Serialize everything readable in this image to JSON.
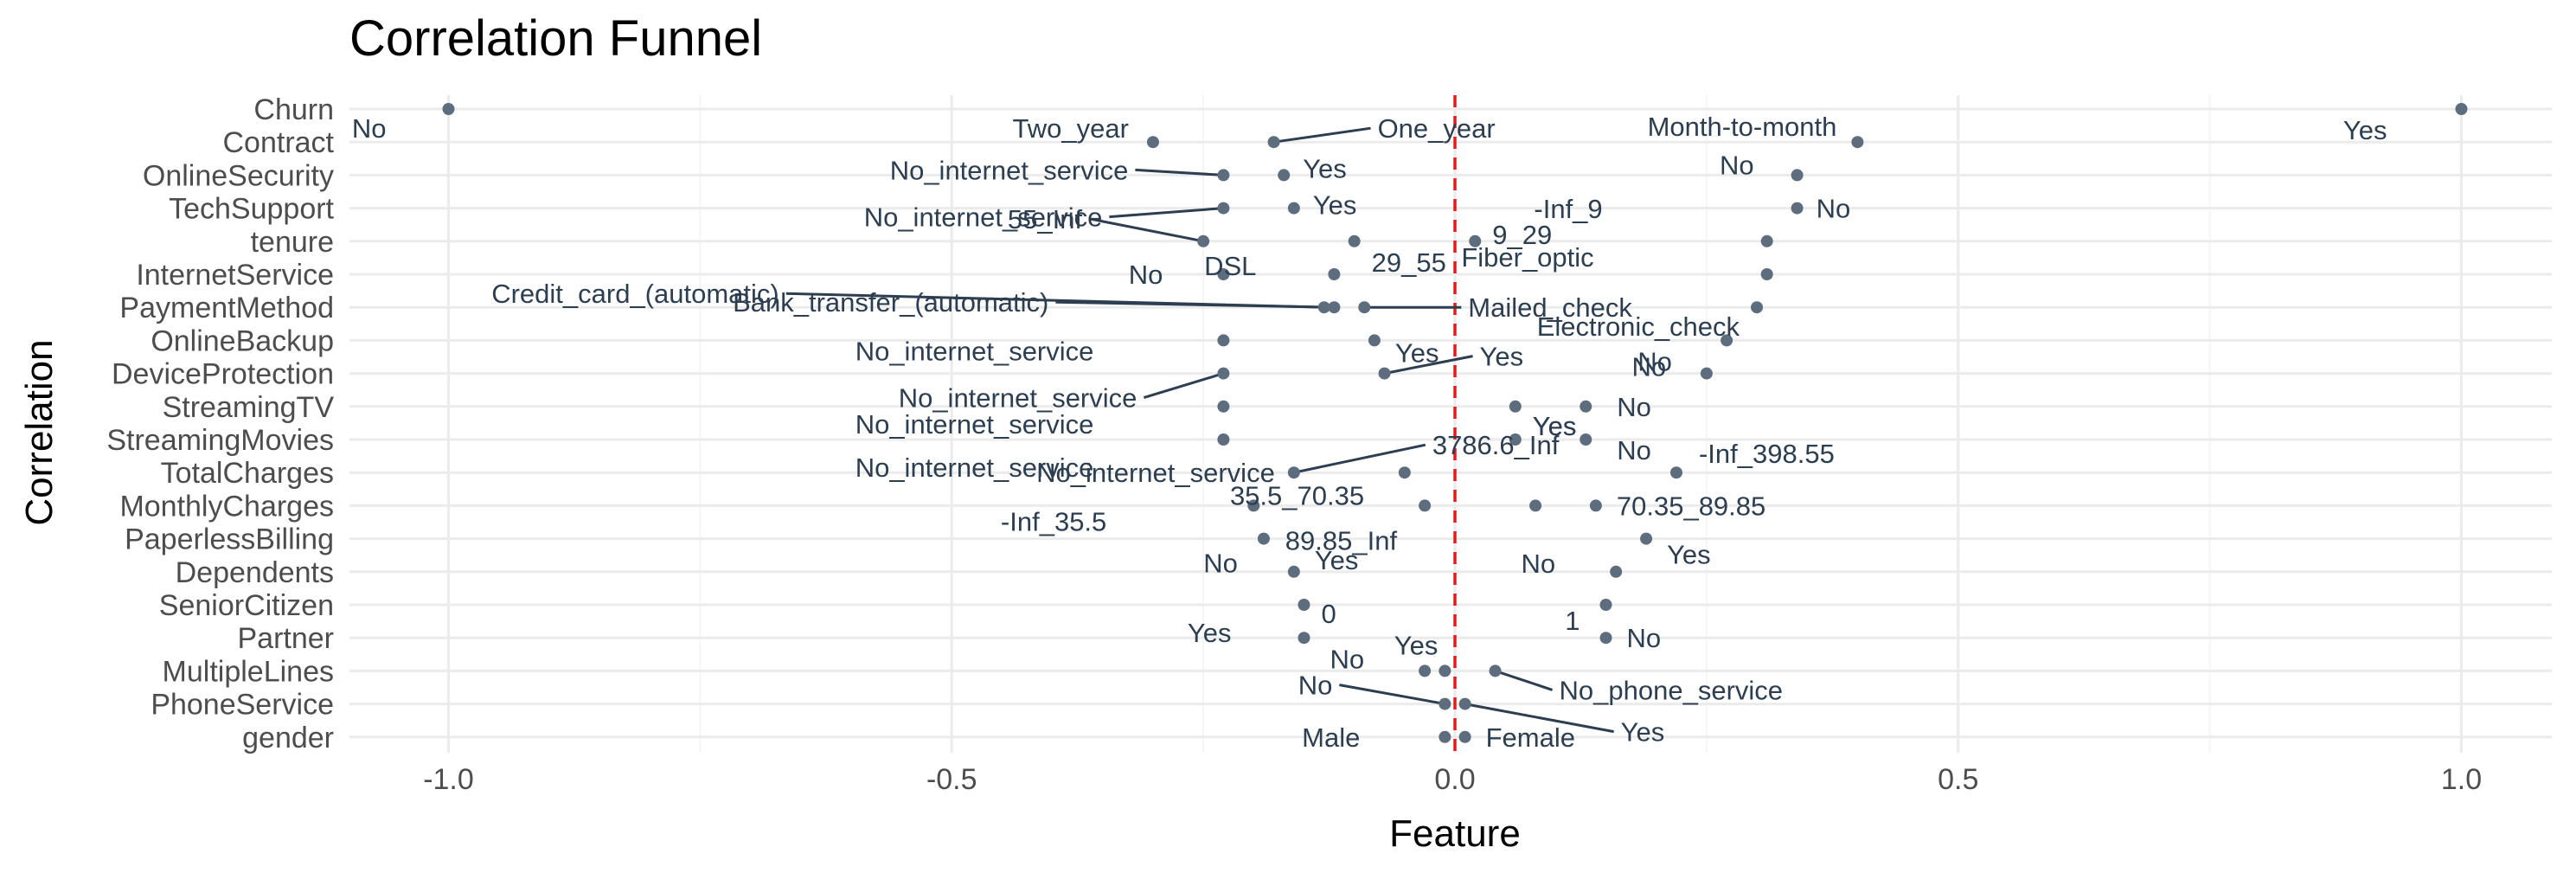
{
  "chart_data": {
    "type": "scatter",
    "title": "Correlation Funnel",
    "xlabel": "Feature",
    "ylabel": "Correlation",
    "xlim": [
      -1.1,
      1.1
    ],
    "xticks": [
      -1.0,
      -0.5,
      0.0,
      0.5,
      1.0
    ],
    "xtick_labels": [
      "-1.0",
      "-0.5",
      "0.0",
      "0.5",
      "1.0"
    ],
    "grid": true,
    "reference_line": {
      "x": 0,
      "style": "dashed",
      "color": "#e41a1c"
    },
    "point_color": "#5d6d7e",
    "label_color": "#2c3e50",
    "categories": [
      "Churn",
      "Contract",
      "OnlineSecurity",
      "TechSupport",
      "tenure",
      "InternetService",
      "PaymentMethod",
      "OnlineBackup",
      "DeviceProtection",
      "StreamingTV",
      "StreamingMovies",
      "TotalCharges",
      "MonthlyCharges",
      "PaperlessBilling",
      "Dependents",
      "SeniorCitizen",
      "Partner",
      "MultipleLines",
      "PhoneService",
      "gender"
    ],
    "points": [
      {
        "feature": "Churn",
        "label": "No",
        "x": -1.0
      },
      {
        "feature": "Churn",
        "label": "Yes",
        "x": 1.0
      },
      {
        "feature": "Contract",
        "label": "Two_year",
        "x": -0.3
      },
      {
        "feature": "Contract",
        "label": "One_year",
        "x": -0.18
      },
      {
        "feature": "Contract",
        "label": "Month-to-month",
        "x": 0.4
      },
      {
        "feature": "OnlineSecurity",
        "label": "No_internet_service",
        "x": -0.23
      },
      {
        "feature": "OnlineSecurity",
        "label": "Yes",
        "x": -0.17
      },
      {
        "feature": "OnlineSecurity",
        "label": "No",
        "x": 0.34
      },
      {
        "feature": "TechSupport",
        "label": "No_internet_service",
        "x": -0.23
      },
      {
        "feature": "TechSupport",
        "label": "Yes",
        "x": -0.16
      },
      {
        "feature": "TechSupport",
        "label": "No",
        "x": 0.34
      },
      {
        "feature": "tenure",
        "label": "55_Inf",
        "x": -0.25
      },
      {
        "feature": "tenure",
        "label": "29_55",
        "x": -0.1
      },
      {
        "feature": "tenure",
        "label": "9_29",
        "x": 0.02
      },
      {
        "feature": "tenure",
        "label": "-Inf_9",
        "x": 0.31
      },
      {
        "feature": "InternetService",
        "label": "No",
        "x": -0.23
      },
      {
        "feature": "InternetService",
        "label": "DSL",
        "x": -0.12
      },
      {
        "feature": "InternetService",
        "label": "Fiber_optic",
        "x": 0.31
      },
      {
        "feature": "PaymentMethod",
        "label": "Credit_card_(automatic)",
        "x": -0.13
      },
      {
        "feature": "PaymentMethod",
        "label": "Bank_transfer_(automatic)",
        "x": -0.12
      },
      {
        "feature": "PaymentMethod",
        "label": "Mailed_check",
        "x": -0.09
      },
      {
        "feature": "PaymentMethod",
        "label": "Electronic_check",
        "x": 0.3
      },
      {
        "feature": "OnlineBackup",
        "label": "No_internet_service",
        "x": -0.23
      },
      {
        "feature": "OnlineBackup",
        "label": "Yes",
        "x": -0.08
      },
      {
        "feature": "OnlineBackup",
        "label": "No",
        "x": 0.27
      },
      {
        "feature": "DeviceProtection",
        "label": "No_internet_service",
        "x": -0.23
      },
      {
        "feature": "DeviceProtection",
        "label": "Yes",
        "x": -0.07
      },
      {
        "feature": "DeviceProtection",
        "label": "No",
        "x": 0.25
      },
      {
        "feature": "StreamingTV",
        "label": "No_internet_service",
        "x": -0.23
      },
      {
        "feature": "StreamingTV",
        "label": "Yes",
        "x": 0.06
      },
      {
        "feature": "StreamingTV",
        "label": "No",
        "x": 0.13
      },
      {
        "feature": "StreamingMovies",
        "label": "No_internet_service",
        "x": -0.23
      },
      {
        "feature": "StreamingMovies",
        "label": "Yes",
        "x": 0.06
      },
      {
        "feature": "StreamingMovies",
        "label": "No",
        "x": 0.13
      },
      {
        "feature": "TotalCharges",
        "label": "3786.6_Inf",
        "x": -0.16
      },
      {
        "feature": "TotalCharges",
        "label": "No_internet_service",
        "x": -0.05
      },
      {
        "feature": "TotalCharges",
        "label": "-Inf_398.55",
        "x": 0.22
      },
      {
        "feature": "MonthlyCharges",
        "label": "-Inf_35.5",
        "x": -0.2
      },
      {
        "feature": "MonthlyCharges",
        "label": "35.5_70.35",
        "x": -0.03
      },
      {
        "feature": "MonthlyCharges",
        "label": "89.85_Inf",
        "x": 0.08
      },
      {
        "feature": "MonthlyCharges",
        "label": "70.35_89.85",
        "x": 0.14
      },
      {
        "feature": "PaperlessBilling",
        "label": "No",
        "x": -0.19
      },
      {
        "feature": "PaperlessBilling",
        "label": "Yes",
        "x": 0.19
      },
      {
        "feature": "Dependents",
        "label": "Yes",
        "x": -0.16
      },
      {
        "feature": "Dependents",
        "label": "No",
        "x": 0.16
      },
      {
        "feature": "SeniorCitizen",
        "label": "0",
        "x": -0.15
      },
      {
        "feature": "SeniorCitizen",
        "label": "1",
        "x": 0.15
      },
      {
        "feature": "Partner",
        "label": "Yes",
        "x": -0.15
      },
      {
        "feature": "Partner",
        "label": "No",
        "x": 0.15
      },
      {
        "feature": "MultipleLines",
        "label": "No",
        "x": -0.03
      },
      {
        "feature": "MultipleLines",
        "label": "Yes",
        "x": -0.01
      },
      {
        "feature": "MultipleLines",
        "label": "No_phone_service",
        "x": 0.04
      },
      {
        "feature": "PhoneService",
        "label": "No",
        "x": -0.01
      },
      {
        "feature": "PhoneService",
        "label": "Yes",
        "x": 0.01
      },
      {
        "feature": "gender",
        "label": "Male",
        "x": -0.01
      },
      {
        "feature": "gender",
        "label": "Female",
        "x": 0.01
      }
    ]
  }
}
